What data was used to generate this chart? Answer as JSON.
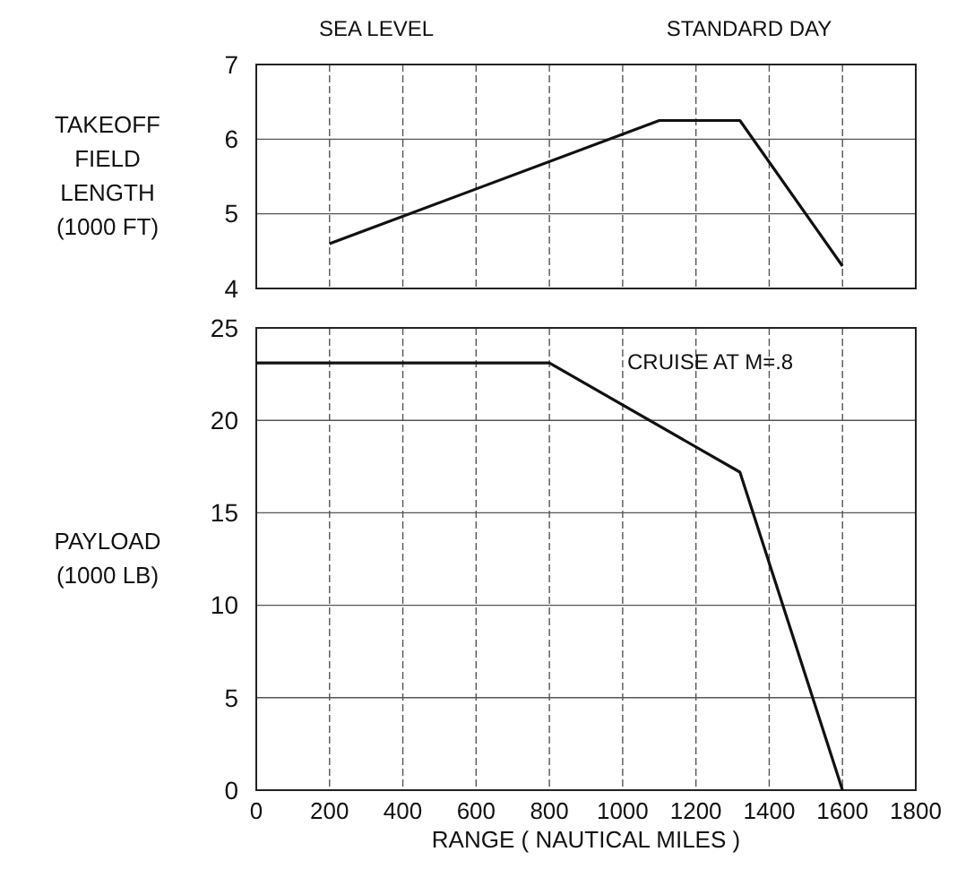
{
  "chart_data": [
    {
      "type": "line",
      "ylabel": "TAKEOFF\nFIELD\nLENGTH\n(1000 FT)",
      "annotations": [
        "SEA LEVEL",
        "STANDARD DAY"
      ],
      "series": [
        {
          "color": "#111111",
          "x": [
            200,
            1100,
            1320,
            1600
          ],
          "values": [
            4.6,
            6.25,
            6.25,
            4.3
          ]
        }
      ],
      "xlim": [
        0,
        1800
      ],
      "xticks": [
        0,
        200,
        400,
        600,
        800,
        1000,
        1200,
        1400,
        1600,
        1800
      ],
      "ylim": [
        4,
        7
      ],
      "yticks": [
        4,
        5,
        6,
        7
      ],
      "grid": true,
      "tick_labels": "y"
    },
    {
      "type": "line",
      "xlabel": "RANGE  ( NAUTICAL MILES )",
      "ylabel": "PAYLOAD\n(1000 LB)",
      "annotations": [
        "CRUISE  AT  M=.8"
      ],
      "series": [
        {
          "color": "#111111",
          "x": [
            0,
            800,
            1320,
            1600
          ],
          "values": [
            23.1,
            23.1,
            17.2,
            0
          ]
        }
      ],
      "xlim": [
        0,
        1800
      ],
      "xticks": [
        0,
        200,
        400,
        600,
        800,
        1000,
        1200,
        1400,
        1600,
        1800
      ],
      "ylim": [
        0,
        25
      ],
      "yticks": [
        0,
        5,
        10,
        15,
        20,
        25
      ],
      "grid": true
    }
  ]
}
